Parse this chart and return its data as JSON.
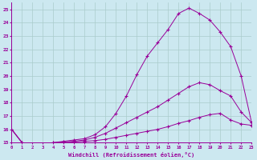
{
  "xlabel": "Windchill (Refroidissement éolien,°C)",
  "bg_color": "#cce8f0",
  "grid_color": "#aacccc",
  "line_color": "#990099",
  "xlim": [
    0,
    23
  ],
  "ylim": [
    15,
    25.5
  ],
  "yticks": [
    15,
    16,
    17,
    18,
    19,
    20,
    21,
    22,
    23,
    24,
    25
  ],
  "xticks": [
    0,
    1,
    2,
    3,
    4,
    5,
    6,
    7,
    8,
    9,
    10,
    11,
    12,
    13,
    14,
    15,
    16,
    17,
    18,
    19,
    20,
    21,
    22,
    23
  ],
  "line1_x": [
    0,
    1,
    2,
    3,
    4,
    5,
    6,
    7,
    8,
    9,
    10,
    11,
    12,
    13,
    14,
    15,
    16,
    17,
    18,
    19,
    20,
    21,
    22,
    23
  ],
  "line1_y": [
    16.0,
    15.0,
    14.8,
    14.85,
    14.9,
    15.0,
    15.05,
    15.1,
    15.15,
    15.25,
    15.4,
    15.55,
    15.7,
    15.85,
    16.0,
    16.2,
    16.45,
    16.65,
    16.9,
    17.1,
    17.2,
    16.7,
    16.4,
    16.3
  ],
  "line2_x": [
    0,
    1,
    2,
    3,
    4,
    5,
    6,
    7,
    8,
    9,
    10,
    11,
    12,
    13,
    14,
    15,
    16,
    17,
    18,
    19,
    20,
    21,
    22,
    23
  ],
  "line2_y": [
    16.0,
    15.0,
    14.8,
    14.85,
    15.0,
    15.05,
    15.1,
    15.2,
    15.4,
    15.7,
    16.1,
    16.5,
    16.9,
    17.3,
    17.7,
    18.2,
    18.7,
    19.2,
    19.5,
    19.35,
    18.9,
    18.5,
    17.3,
    16.5
  ],
  "line3_x": [
    0,
    1,
    2,
    3,
    4,
    5,
    6,
    7,
    8,
    9,
    10,
    11,
    12,
    13,
    14,
    15,
    16,
    17,
    18,
    19,
    20,
    21,
    22,
    23
  ],
  "line3_y": [
    16.0,
    15.0,
    14.8,
    14.85,
    15.0,
    15.1,
    15.2,
    15.3,
    15.6,
    16.2,
    17.2,
    18.5,
    20.1,
    21.5,
    22.5,
    23.5,
    24.7,
    25.1,
    24.7,
    24.2,
    23.3,
    22.2,
    20.0,
    16.5
  ]
}
